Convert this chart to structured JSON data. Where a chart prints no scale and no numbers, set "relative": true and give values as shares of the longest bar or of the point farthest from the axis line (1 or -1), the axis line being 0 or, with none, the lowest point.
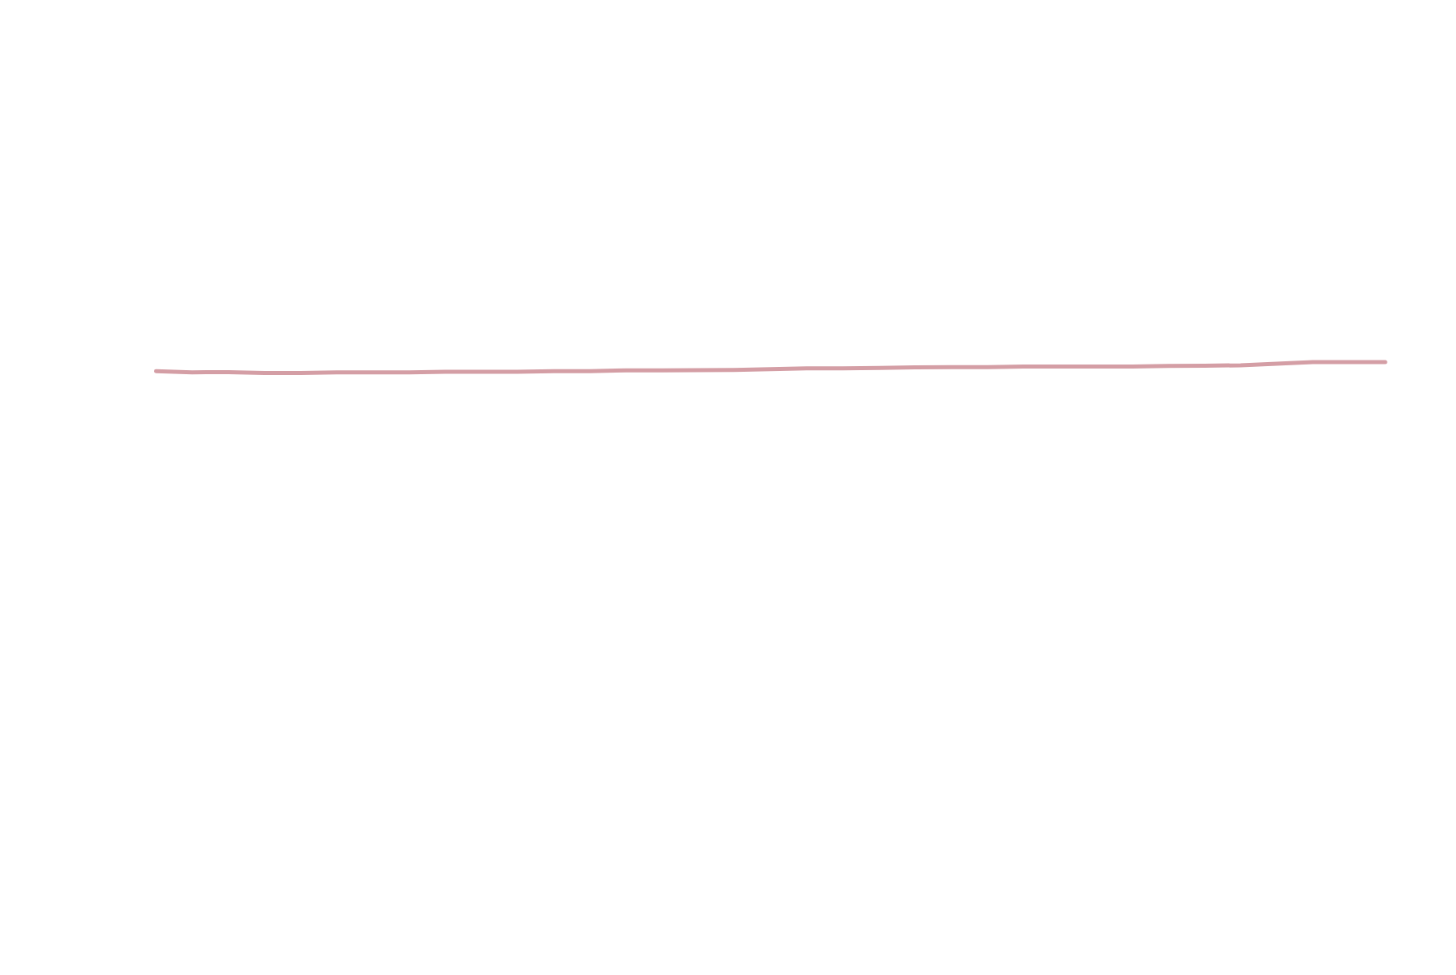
{
  "chart_data": {
    "type": "line",
    "relative": true,
    "categories": [
      null,
      null,
      null,
      null,
      null,
      null,
      null,
      null,
      null,
      null,
      null,
      null,
      null,
      null,
      null,
      null,
      null,
      null,
      null,
      null,
      null,
      null,
      null,
      null,
      null,
      null,
      null,
      null,
      null,
      null,
      null,
      null,
      null,
      null,
      null
    ],
    "series": [
      {
        "color": "#d49ea5",
        "values": [
          0.17,
          0.07,
          0.08,
          0,
          0,
          0.06,
          0.06,
          0.06,
          0.12,
          0.12,
          0.12,
          0.18,
          0.18,
          0.25,
          0.25,
          0.27,
          0.29,
          0.36,
          0.42,
          0.42,
          0.47,
          0.52,
          0.54,
          0.54,
          0.6,
          0.6,
          0.6,
          0.6,
          0.64,
          0.66,
          0.71,
          0.85,
          1,
          1,
          1
        ]
      }
    ]
  }
}
